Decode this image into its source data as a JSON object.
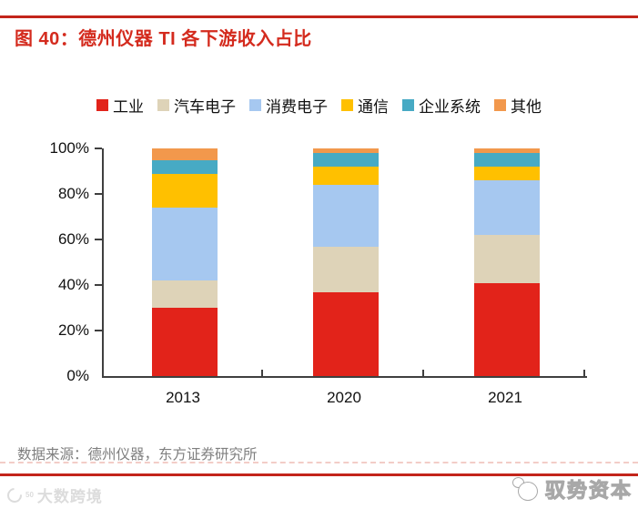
{
  "page": {
    "title": "图 40：德州仪器 TI 各下游收入占比",
    "source_note": "数据来源：德州仪器，东方证券研究所",
    "watermark_left": "大数跨境",
    "watermark_left_logo_sup": "50",
    "watermark_right": "驭势资本",
    "accent_red": "#c3251b",
    "title_red": "#d42b1e",
    "axis_color": "#3f3f3f",
    "source_gray": "#7f7f7f"
  },
  "chart_data": {
    "type": "bar",
    "stacked": true,
    "title": "德州仪器 TI 各下游收入占比",
    "categories": [
      "2013",
      "2020",
      "2021"
    ],
    "series": [
      {
        "name": "工业",
        "color": "#e2231a",
        "values": [
          30,
          37,
          41
        ]
      },
      {
        "name": "汽车电子",
        "color": "#ded3b8",
        "values": [
          12,
          20,
          21
        ]
      },
      {
        "name": "消费电子",
        "color": "#a6c8f0",
        "values": [
          32,
          27,
          24
        ]
      },
      {
        "name": "通信",
        "color": "#ffc000",
        "values": [
          15,
          8,
          6
        ]
      },
      {
        "name": "企业系统",
        "color": "#47aac4",
        "values": [
          6,
          6,
          6
        ]
      },
      {
        "name": "其他",
        "color": "#f2984c",
        "values": [
          5,
          2,
          2
        ]
      }
    ],
    "value_unit": "%",
    "ylim": [
      0,
      100
    ],
    "y_ticks": [
      {
        "label": "0%",
        "value": 0
      },
      {
        "label": "20%",
        "value": 20
      },
      {
        "label": "40%",
        "value": 40
      },
      {
        "label": "60%",
        "value": 60
      },
      {
        "label": "80%",
        "value": 80
      },
      {
        "label": "100%",
        "value": 100
      }
    ],
    "grid": false,
    "legend_position": "top"
  }
}
